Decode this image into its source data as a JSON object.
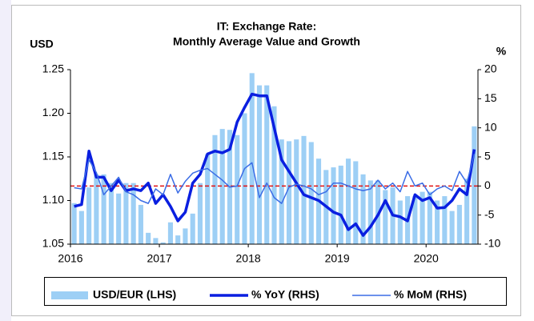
{
  "chart_data": {
    "type": "combo",
    "title": "IT: Exchange Rate:",
    "subtitle": "Monthly Average Value and Growth",
    "y_label": "USD",
    "y2_label": "%",
    "categories": [
      "2016",
      null,
      null,
      null,
      null,
      null,
      null,
      null,
      null,
      null,
      null,
      null,
      "2017",
      null,
      null,
      null,
      null,
      null,
      null,
      null,
      null,
      null,
      null,
      null,
      "2018",
      null,
      null,
      null,
      null,
      null,
      null,
      null,
      null,
      null,
      null,
      null,
      "2019",
      null,
      null,
      null,
      null,
      null,
      null,
      null,
      null,
      null,
      null,
      null,
      "2020",
      null,
      null,
      null,
      null,
      null,
      null
    ],
    "series": [
      {
        "name": "USD/EUR (LHS)",
        "type": "bar",
        "color": "#9dcff5",
        "values": [
          1.097,
          1.088,
          1.115,
          1.13,
          1.13,
          1.12,
          1.108,
          1.12,
          1.12,
          1.095,
          1.063,
          1.057,
          1.052,
          1.075,
          1.06,
          1.068,
          1.085,
          1.12,
          1.153,
          1.175,
          1.182,
          1.181,
          1.175,
          1.2,
          1.246,
          1.232,
          1.232,
          1.208,
          1.17,
          1.168,
          1.17,
          1.174,
          1.167,
          1.148,
          1.135,
          1.138,
          1.14,
          1.148,
          1.145,
          1.13,
          1.123,
          1.123,
          1.112,
          1.115,
          1.1,
          1.105,
          1.105,
          1.11,
          1.11,
          1.1,
          1.105,
          1.088,
          1.095,
          1.125,
          1.185
        ]
      },
      {
        "name": "% YoY (RHS)",
        "type": "line",
        "axis": "y2",
        "color": "#0a1fe0",
        "width": 3.5,
        "values": [
          -3.5,
          -3.2,
          6,
          1.5,
          1.5,
          -0.8,
          1,
          -0.8,
          -0.5,
          -0.8,
          0.5,
          -3,
          -1.5,
          -3.5,
          -6,
          -4.5,
          0.5,
          2,
          5.5,
          6,
          5.7,
          6.3,
          11,
          13.5,
          15.8,
          15.5,
          15.5,
          10,
          4.5,
          2.5,
          0.5,
          -1.5,
          -2,
          -2.5,
          -3.5,
          -4.5,
          -5,
          -7.5,
          -6.5,
          -8.5,
          -7,
          -5,
          -2.5,
          -5,
          -5.3,
          -6,
          -1.5,
          -2.5,
          -2,
          -3.8,
          -3.7,
          -2.5,
          -0.5,
          -1.5,
          6.3
        ]
      },
      {
        "name": "% MoM (RHS)",
        "type": "line",
        "axis": "y2",
        "color": "#3b6de6",
        "width": 1.5,
        "values": [
          -0.3,
          -0.5,
          4.5,
          2.3,
          -1.5,
          0,
          1.5,
          -1,
          -1.5,
          -2.5,
          -3,
          -0.5,
          -1.5,
          2,
          -1.2,
          0.8,
          2.2,
          2.7,
          3,
          2,
          1,
          -0.2,
          0,
          3,
          4,
          -2,
          0.5,
          -2,
          -3,
          -0.2,
          0.3,
          0,
          -0.5,
          -1.5,
          -1,
          0.5,
          0.5,
          0,
          -0.5,
          -0.8,
          -0.5,
          1,
          -0.5,
          0.5,
          -1,
          2.5,
          0,
          0.5,
          -1.5,
          -0.5,
          0,
          -0.8,
          2.5,
          0.5,
          5.5
        ]
      }
    ],
    "ylim": [
      1.05,
      1.25
    ],
    "yticks": [
      1.05,
      {
        "value": 1.1,
        "label": "1.10"
      },
      1.15,
      {
        "value": 1.2,
        "label": "1.20"
      },
      1.25
    ],
    "y2lim": [
      -10,
      20
    ],
    "y2ticks": [
      -10,
      -5,
      0,
      5,
      10,
      15,
      20
    ],
    "reference_line": {
      "axis": "y2",
      "value": 0,
      "color": "#e01010"
    },
    "legend": "bottom"
  }
}
